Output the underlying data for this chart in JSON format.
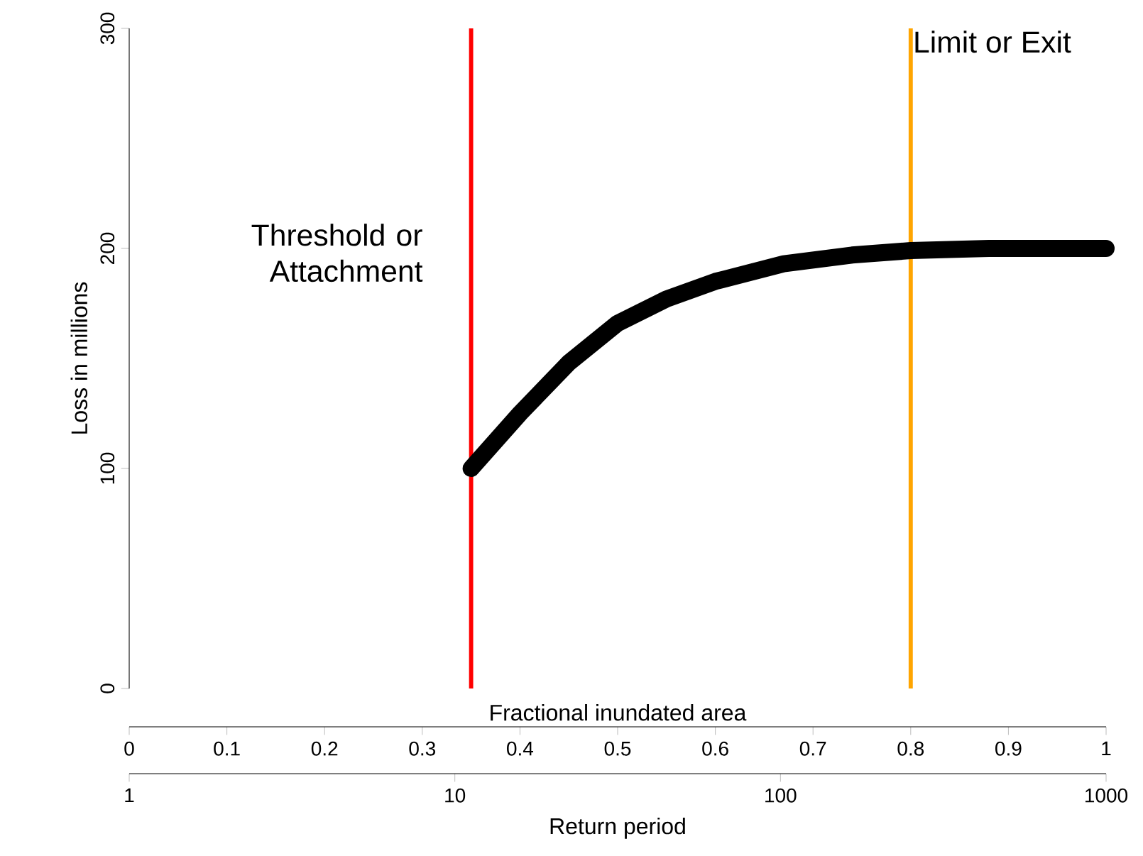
{
  "chart_data": {
    "type": "line",
    "xlabel": "Fractional inundated area",
    "ylabel": "Loss in millions",
    "x2label": "Return period",
    "x": [
      0.35,
      0.4,
      0.45,
      0.5,
      0.55,
      0.6,
      0.67,
      0.74,
      0.8,
      0.88,
      1
    ],
    "series": [
      {
        "color": "#000000",
        "values": [
          100,
          125,
          148,
          166,
          177,
          185,
          193,
          197,
          199,
          200,
          200
        ]
      }
    ],
    "xlim": [
      0,
      1
    ],
    "xticks": [
      0,
      0.1,
      0.2,
      0.3,
      0.4,
      0.5,
      0.6,
      0.7,
      0.8,
      0.9,
      1
    ],
    "ylim": [
      0,
      300
    ],
    "yticks": [
      0,
      100,
      200,
      300
    ],
    "x2lim": [
      1,
      1000
    ],
    "log": "x2",
    "x2ticks": [
      1,
      10,
      100,
      1000
    ],
    "ref_lines": [
      {
        "axis": "x",
        "value": 0.35,
        "label": "Threshold or Attachment",
        "color": "#ff0000"
      },
      {
        "axis": "x",
        "value": 0.8,
        "label": "Limit or Exit",
        "color": "#ffa500"
      }
    ],
    "grid": false,
    "marker": "none",
    "line_style": "solid"
  }
}
